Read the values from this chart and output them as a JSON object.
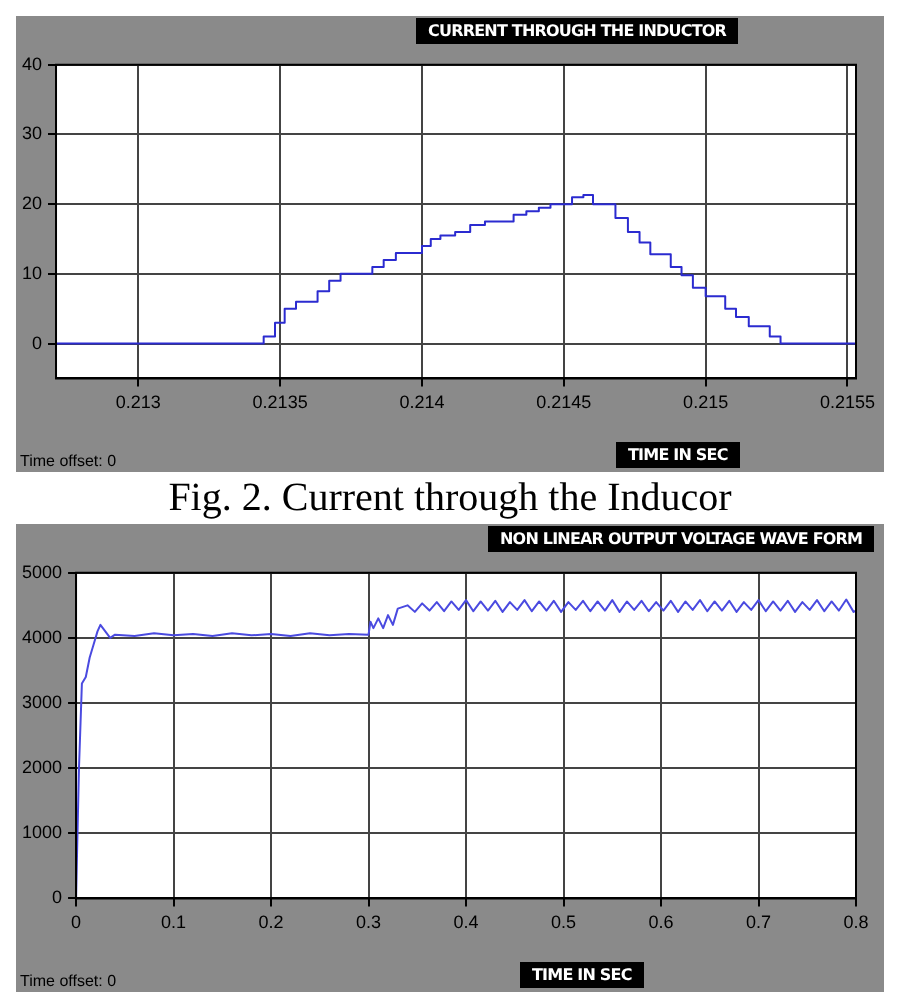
{
  "chart_data": [
    {
      "type": "step",
      "title": "CURRENT THROUGH THE INDUCTOR",
      "xlabel": "TIME IN SEC",
      "annotations": [
        "Time offset: 0",
        "Fig. 2. Current through the Inducor"
      ],
      "x": [
        0.21271,
        0.213442,
        0.213482,
        0.213516,
        0.213556,
        0.213632,
        0.213673,
        0.213713,
        0.213825,
        0.213865,
        0.213908,
        0.214,
        0.214031,
        0.214065,
        0.214117,
        0.21417,
        0.214222,
        0.214323,
        0.214368,
        0.214412,
        0.214453,
        0.214529,
        0.214569,
        0.214603,
        0.214682,
        0.214726,
        0.214767,
        0.214805,
        0.214877,
        0.214915,
        0.214955,
        0.215,
        0.215069,
        0.215107,
        0.215152,
        0.215226,
        0.215264,
        0.21553
      ],
      "series": [
        {
          "color": "#2b2bd0",
          "values": [
            0,
            1,
            3,
            5,
            6,
            7.5,
            9,
            10,
            11,
            12,
            13,
            14,
            15,
            15.5,
            16,
            17,
            17.5,
            18.5,
            19,
            19.5,
            20,
            21,
            21.3,
            20,
            18,
            16,
            14.5,
            12.8,
            11,
            9.8,
            8,
            6.8,
            5,
            3.8,
            2.5,
            1,
            0,
            0
          ]
        }
      ],
      "xlim": [
        0.21271,
        0.21553
      ],
      "xticks": [
        0.213,
        0.2135,
        0.214,
        0.2145,
        0.215,
        0.2155
      ],
      "ylim": [
        -5,
        40
      ],
      "yticks": [
        0,
        10,
        20,
        30,
        40
      ],
      "grid": true,
      "legend": false,
      "line_style": "solid",
      "marker": "none"
    },
    {
      "type": "line",
      "title": "NON LINEAR  OUTPUT VOLTAGE WAVE FORM",
      "xlabel": "TIME IN SEC",
      "annotations": [
        "Time offset: 0"
      ],
      "x": [
        0,
        0.003,
        0.006,
        0.01,
        0.014,
        0.018,
        0.022,
        0.025,
        0.03,
        0.035,
        0.04,
        0.06,
        0.08,
        0.1,
        0.12,
        0.14,
        0.16,
        0.18,
        0.2,
        0.22,
        0.24,
        0.26,
        0.28,
        0.3,
        0.302,
        0.305,
        0.31,
        0.315,
        0.32,
        0.325,
        0.33,
        0.34,
        0.3475,
        0.355,
        0.3625,
        0.37,
        0.3775,
        0.385,
        0.3925,
        0.4,
        0.4075,
        0.415,
        0.4225,
        0.43,
        0.4375,
        0.445,
        0.4525,
        0.46,
        0.4675,
        0.475,
        0.4825,
        0.49,
        0.4975,
        0.505,
        0.5125,
        0.52,
        0.5275,
        0.535,
        0.5425,
        0.55,
        0.5575,
        0.565,
        0.5725,
        0.58,
        0.5875,
        0.595,
        0.6025,
        0.61,
        0.6175,
        0.625,
        0.6325,
        0.64,
        0.6475,
        0.655,
        0.6625,
        0.67,
        0.6775,
        0.685,
        0.6925,
        0.7,
        0.7075,
        0.715,
        0.7225,
        0.73,
        0.7375,
        0.745,
        0.7525,
        0.76,
        0.7675,
        0.775,
        0.7825,
        0.79,
        0.7975,
        0.8
      ],
      "series": [
        {
          "color": "#4a4ae0",
          "values": [
            0,
            2000,
            3300,
            3400,
            3700,
            3900,
            4100,
            4200,
            4100,
            4000,
            4050,
            4030,
            4070,
            4040,
            4060,
            4030,
            4070,
            4040,
            4060,
            4030,
            4070,
            4040,
            4060,
            4050,
            4250,
            4150,
            4300,
            4150,
            4350,
            4200,
            4450,
            4500,
            4400,
            4530,
            4420,
            4550,
            4410,
            4560,
            4430,
            4580,
            4410,
            4560,
            4420,
            4570,
            4400,
            4550,
            4430,
            4580,
            4410,
            4560,
            4420,
            4570,
            4400,
            4550,
            4430,
            4570,
            4410,
            4560,
            4420,
            4580,
            4400,
            4560,
            4430,
            4570,
            4410,
            4550,
            4420,
            4570,
            4400,
            4560,
            4430,
            4580,
            4410,
            4560,
            4420,
            4570,
            4400,
            4550,
            4430,
            4580,
            4410,
            4560,
            4420,
            4570,
            4400,
            4550,
            4430,
            4580,
            4410,
            4560,
            4420,
            4590,
            4400,
            4420
          ]
        }
      ],
      "xlim": [
        0,
        0.8
      ],
      "xticks": [
        0,
        0.1,
        0.2,
        0.3,
        0.4,
        0.5,
        0.6,
        0.7,
        0.8
      ],
      "ylim": [
        0,
        5000
      ],
      "yticks": [
        0,
        1000,
        2000,
        3000,
        4000,
        5000
      ],
      "grid": true,
      "legend": false,
      "line_style": "solid",
      "marker": "none"
    }
  ]
}
